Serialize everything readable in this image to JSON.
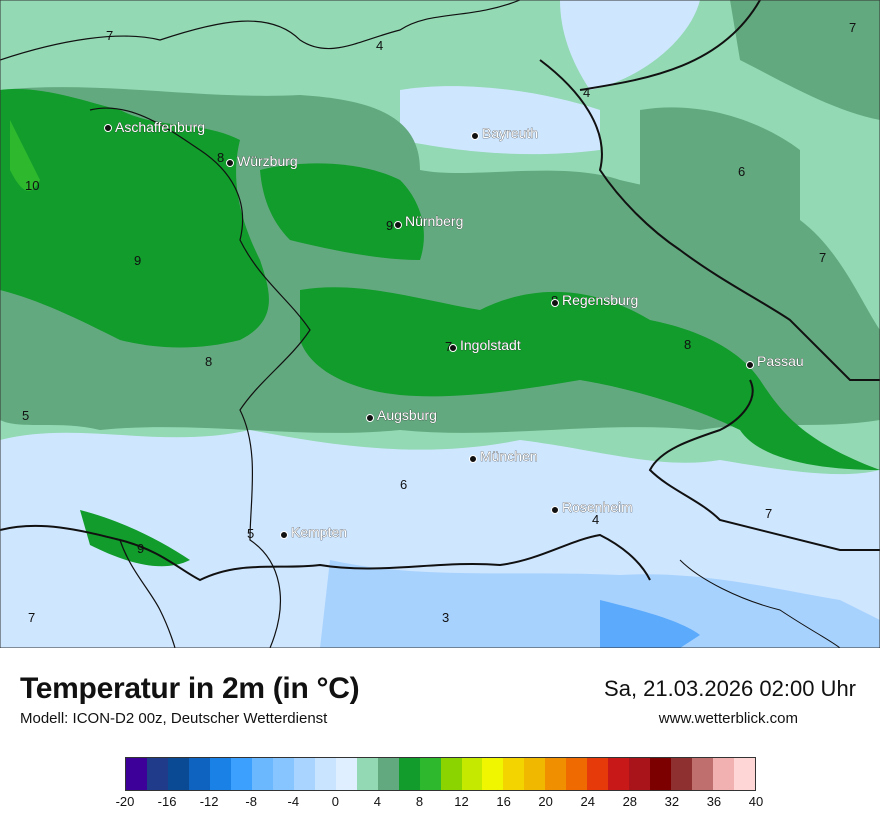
{
  "map": {
    "cities": [
      {
        "name": "Aschaffenburg"
      },
      {
        "name": "Würzburg"
      },
      {
        "name": "Bayreuth"
      },
      {
        "name": "Nürnberg"
      },
      {
        "name": "Regensburg"
      },
      {
        "name": "Ingolstadt"
      },
      {
        "name": "Passau"
      },
      {
        "name": "Augsburg"
      },
      {
        "name": "München"
      },
      {
        "name": "Rosenheim"
      },
      {
        "name": "Kempten"
      }
    ],
    "isotherm_labels": [
      "7",
      "4",
      "4",
      "7",
      "8",
      "10",
      "9",
      "9",
      "6",
      "7",
      "8",
      "8",
      "7",
      "8",
      "5",
      "6",
      "4",
      "7",
      "5",
      "9",
      "7",
      "3"
    ],
    "colors": {
      "warm_green": "#2db82d",
      "mid_green": "#119c2b",
      "pale_green": "#63a97f",
      "light_green": "#93d9b4",
      "pale_blue": "#cfe6ff",
      "light_blue": "#a8d2fe",
      "blue": "#5caafc"
    }
  },
  "footer": {
    "title": "Temperatur in 2m (in °C)",
    "subtitle": "Modell: ICON-D2 00z, Deutscher Wetterdienst",
    "datetime": "Sa, 21.03.2026 02:00 Uhr",
    "website": "www.wetterblick.com"
  },
  "legend": {
    "colors": [
      "#3d0099",
      "#1f3b8a",
      "#0a4a94",
      "#0f63c0",
      "#1a82e6",
      "#3ca0ff",
      "#6cb8ff",
      "#86c5ff",
      "#a8d4ff",
      "#c9e4ff",
      "#dfefff",
      "#93d9b4",
      "#63a97f",
      "#119c2b",
      "#2db82d",
      "#8bd400",
      "#c5ea00",
      "#f0f500",
      "#f3d400",
      "#f1b800",
      "#f09000",
      "#ef6a00",
      "#e63a0a",
      "#c81818",
      "#a8141a",
      "#7d0000",
      "#8e3030",
      "#c06f6f",
      "#f2b1b1",
      "#ffd6d6"
    ],
    "ticks": [
      "-20",
      "-16",
      "-12",
      "-8",
      "-4",
      "0",
      "4",
      "8",
      "12",
      "16",
      "20",
      "24",
      "28",
      "32",
      "36",
      "40"
    ]
  }
}
